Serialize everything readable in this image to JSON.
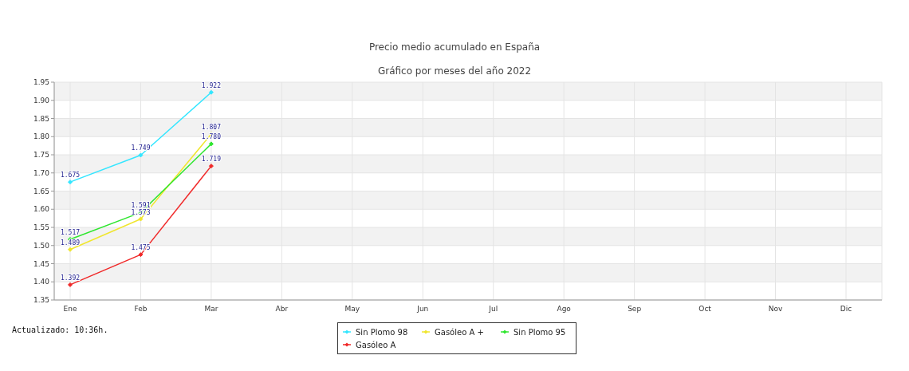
{
  "chart_data": {
    "type": "line",
    "title": "Precio medio acumulado en España",
    "subtitle": "Gráfico por meses del año 2022",
    "categories": [
      "Ene",
      "Feb",
      "Mar",
      "Abr",
      "May",
      "Jun",
      "Jul",
      "Ago",
      "Sep",
      "Oct",
      "Nov",
      "Dic"
    ],
    "series": [
      {
        "name": "Sin Plomo 98",
        "color": "#33e6ff",
        "values": [
          1.675,
          1.749,
          1.922,
          null,
          null,
          null,
          null,
          null,
          null,
          null,
          null,
          null
        ],
        "value_labels": [
          "1.675",
          "1.749",
          "1.922",
          null,
          null,
          null,
          null,
          null,
          null,
          null,
          null,
          null
        ]
      },
      {
        "name": "Gasóleo A +",
        "color": "#f0e62e",
        "values": [
          1.489,
          1.573,
          1.807,
          null,
          null,
          null,
          null,
          null,
          null,
          null,
          null,
          null
        ],
        "value_labels": [
          "1.489",
          "1.573",
          "1.807",
          null,
          null,
          null,
          null,
          null,
          null,
          null,
          null,
          null
        ]
      },
      {
        "name": "Sin Plomo 95",
        "color": "#2ee62e",
        "values": [
          1.517,
          1.591,
          1.78,
          null,
          null,
          null,
          null,
          null,
          null,
          null,
          null,
          null
        ],
        "value_labels": [
          "1.517",
          "1.591",
          "1.780",
          null,
          null,
          null,
          null,
          null,
          null,
          null,
          null,
          null
        ]
      },
      {
        "name": "Gasóleo A",
        "color": "#f02828",
        "values": [
          1.392,
          1.475,
          1.719,
          null,
          null,
          null,
          null,
          null,
          null,
          null,
          null,
          null
        ],
        "value_labels": [
          "1.392",
          "1.475",
          "1.719",
          null,
          null,
          null,
          null,
          null,
          null,
          null,
          null,
          null
        ]
      }
    ],
    "ylim": [
      1.35,
      1.95
    ],
    "yticks": [
      {
        "value": 1.35,
        "label": "1.35"
      },
      {
        "value": 1.4,
        "label": "1.40"
      },
      {
        "value": 1.45,
        "label": "1.45"
      },
      {
        "value": 1.5,
        "label": "1.50"
      },
      {
        "value": 1.55,
        "label": "1.55"
      },
      {
        "value": 1.6,
        "label": "1.60"
      },
      {
        "value": 1.65,
        "label": "1.65"
      },
      {
        "value": 1.7,
        "label": "1.70"
      },
      {
        "value": 1.75,
        "label": "1.75"
      },
      {
        "value": 1.8,
        "label": "1.80"
      },
      {
        "value": 1.85,
        "label": "1.85"
      },
      {
        "value": 1.9,
        "label": "1.90"
      },
      {
        "value": 1.95,
        "label": "1.95"
      }
    ],
    "grid": true,
    "legend": "bottom",
    "marker": "diamond",
    "line_style": "solid",
    "annotations": [
      "Actualizado: 10:36h."
    ]
  }
}
